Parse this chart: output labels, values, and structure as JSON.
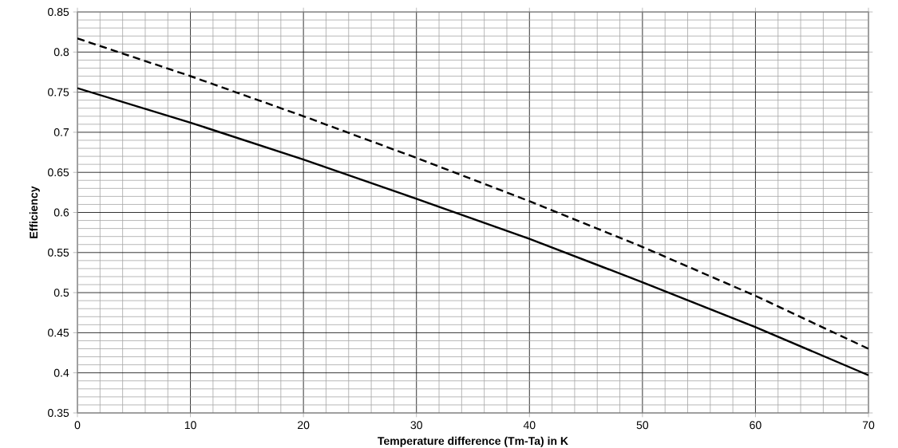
{
  "chart_data": {
    "type": "line",
    "xlabel": "Temperature difference (Tm-Ta) in K",
    "ylabel": "Efficiency",
    "x": [
      0,
      10,
      20,
      30,
      40,
      50,
      60,
      70
    ],
    "series": [
      {
        "color": "#000000",
        "line_style": "solid",
        "values": [
          0.755,
          0.712,
          0.666,
          0.617,
          0.567,
          0.513,
          0.457,
          0.397
        ]
      },
      {
        "color": "#000000",
        "line_style": "dashed",
        "values": [
          0.817,
          0.77,
          0.72,
          0.668,
          0.614,
          0.557,
          0.496,
          0.43
        ]
      }
    ],
    "xlim": [
      0,
      70
    ],
    "ylim": [
      0.35,
      0.85
    ],
    "xticks": [
      0,
      10,
      20,
      30,
      40,
      50,
      60,
      70
    ],
    "yticks": [
      0.35,
      0.4,
      0.45,
      0.5,
      0.55,
      0.6,
      0.65,
      0.7,
      0.75,
      0.8,
      0.85
    ],
    "grid": true,
    "legend": false,
    "marker": "none"
  }
}
